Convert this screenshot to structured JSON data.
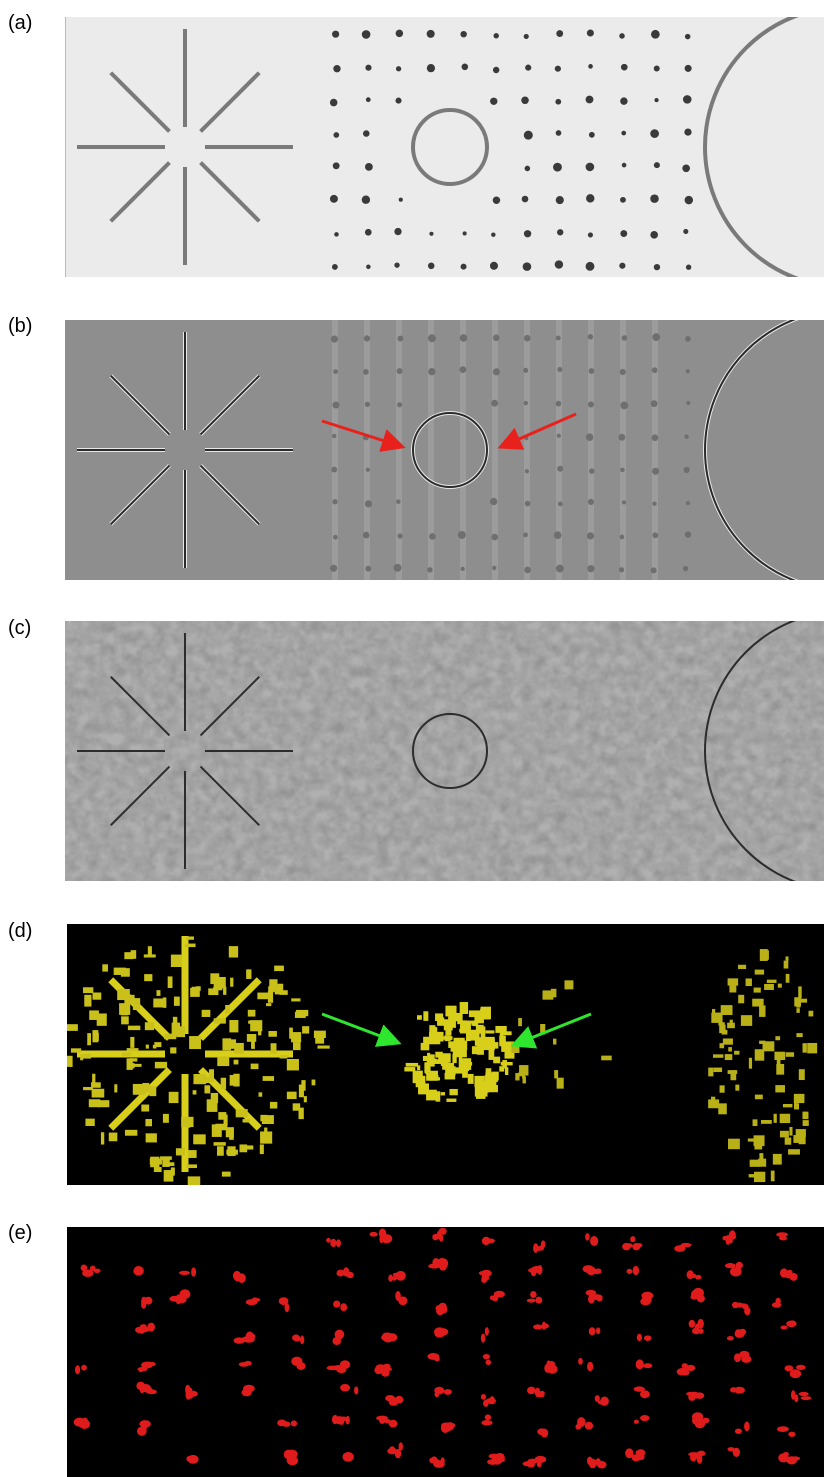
{
  "panels": [
    {
      "label": "(a)"
    },
    {
      "label": "(b)"
    },
    {
      "label": "(c)"
    },
    {
      "label": "(d)"
    },
    {
      "label": "(e)"
    }
  ]
}
